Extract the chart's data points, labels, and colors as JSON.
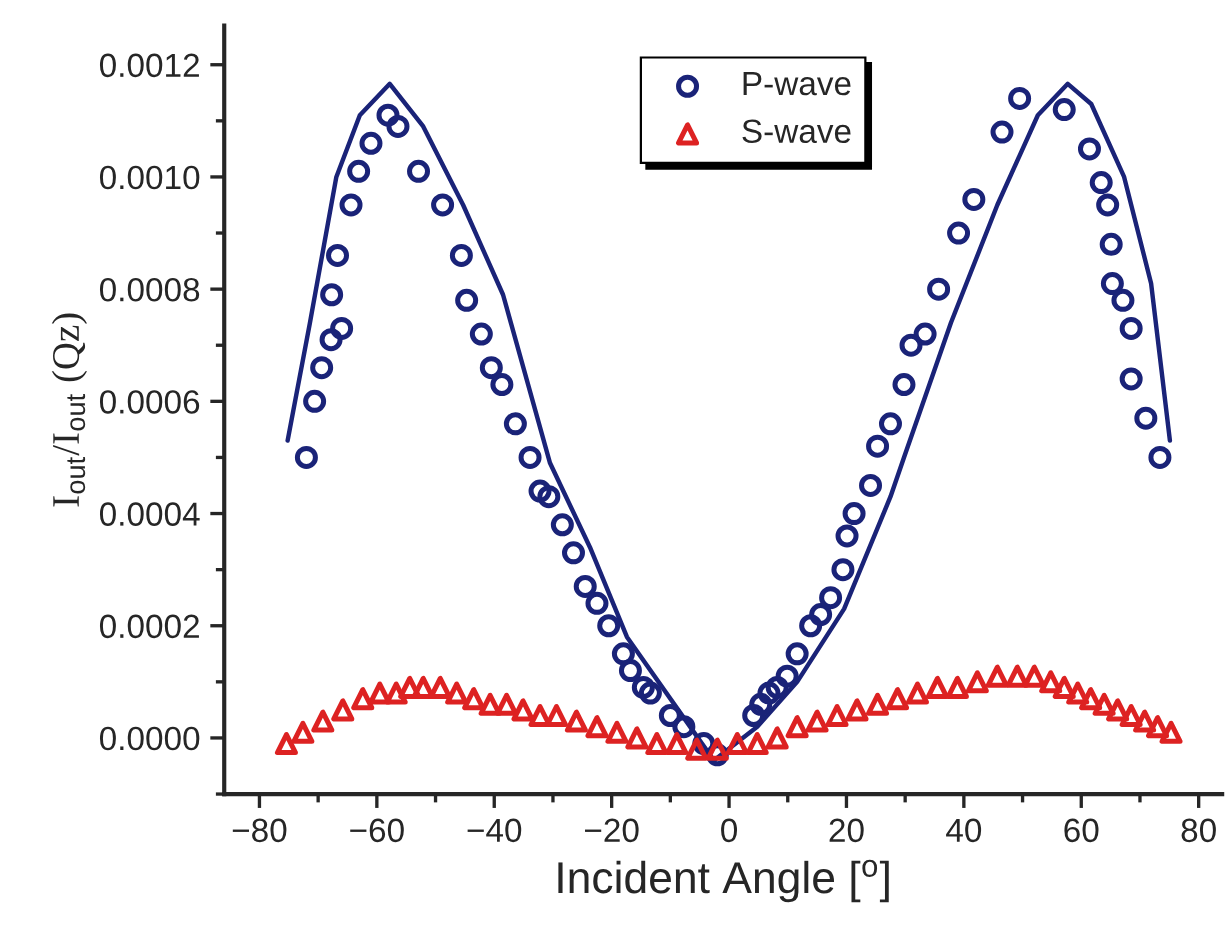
{
  "chart_data": {
    "type": "scatter",
    "xlabel": "Incident Angle [$^{o}$]",
    "ylabel": "I$_{out}$/I$_{out}$ (Qz)",
    "xlim": [
      -86,
      84
    ],
    "ylim": [
      -0.0001,
      0.00127
    ],
    "xticks": [
      -80,
      {
        "value": -70,
        "label": null
      },
      -60,
      {
        "value": -50,
        "label": null
      },
      -40,
      {
        "value": -30,
        "label": null
      },
      -20,
      {
        "value": -10,
        "label": null
      },
      0,
      {
        "value": 10,
        "label": null
      },
      20,
      {
        "value": 30,
        "label": null
      },
      40,
      {
        "value": 50,
        "label": null
      },
      60,
      {
        "value": 70,
        "label": null
      },
      80
    ],
    "yticks": [
      {
        "value": -0.0001,
        "label": null
      },
      {
        "value": 0,
        "label": "0.0000"
      },
      {
        "value": 0.0001,
        "label": null
      },
      {
        "value": 0.0002,
        "label": "0.0002"
      },
      {
        "value": 0.0003,
        "label": null
      },
      {
        "value": 0.0004,
        "label": "0.0004"
      },
      {
        "value": 0.0005,
        "label": null
      },
      {
        "value": 0.0006,
        "label": "0.0006"
      },
      {
        "value": 0.0007,
        "label": null
      },
      {
        "value": 0.0008,
        "label": "0.0008"
      },
      {
        "value": 0.0009,
        "label": null
      },
      {
        "value": 0.001,
        "label": "0.0010"
      },
      {
        "value": 0.0011,
        "label": null
      },
      {
        "value": 0.0012,
        "label": "0.0012"
      }
    ],
    "grid": false,
    "legend": "top",
    "series": [
      {
        "type": "line",
        "color": "#1a2378",
        "marker": "none",
        "line_style": "solid",
        "x": [
          -75.2,
          -71.4,
          -66.9,
          -62.9,
          -57.8,
          -52.1,
          -45.3,
          -38.5,
          -30.5,
          -23.7,
          -17.4,
          -2.6,
          4.8,
          11.6,
          19.6,
          27.5,
          29.8,
          37.8,
          45.7,
          52.6,
          57.7,
          61.7,
          67.3,
          71.9,
          75.1
        ],
        "values": [
          0.00053,
          0.00074,
          0.001,
          0.00111,
          0.001166,
          0.00109,
          0.00095,
          0.00079,
          0.00049,
          0.00034,
          0.00018,
          -4e-05,
          2e-05,
          0.0001,
          0.00023,
          0.00043,
          0.0005,
          0.00074,
          0.00095,
          0.00111,
          0.001166,
          0.00113,
          0.001,
          0.00081,
          0.00053
        ]
      },
      {
        "name": "P-wave",
        "color": "#1a2378",
        "marker": "circle",
        "x": [
          -72.0,
          -70.6,
          -69.4,
          -67.8,
          -66.0,
          -67.7,
          -66.7,
          -64.4,
          -63.1,
          -61.0,
          -58.1,
          -56.4,
          -52.9,
          -48.8,
          -45.6,
          -44.7,
          -42.2,
          -40.5,
          -38.7,
          -36.4,
          -33.9,
          -32.2,
          -30.7,
          -28.4,
          -26.5,
          -24.5,
          -22.5,
          -20.5,
          -18.0,
          -16.8,
          -14.6,
          -13.4,
          -10.0,
          -7.7,
          -4.3,
          -2.0,
          4.2,
          5.4,
          6.8,
          8.2,
          9.9,
          11.6,
          13.9,
          15.6,
          17.3,
          19.4,
          20.1,
          21.3,
          24.1,
          25.3,
          27.5,
          29.8,
          31.0,
          33.4,
          35.7,
          39.1,
          41.7,
          46.5,
          49.5,
          57.1,
          61.4,
          63.4,
          64.5,
          65.1,
          65.3,
          67.1,
          68.5,
          68.5,
          71.0,
          73.4
        ],
        "values": [
          0.0005,
          0.0006,
          0.00066,
          0.00071,
          0.00073,
          0.00079,
          0.00086,
          0.00095,
          0.00101,
          0.00106,
          0.00111,
          0.00109,
          0.00101,
          0.00095,
          0.00086,
          0.00078,
          0.00072,
          0.00066,
          0.00063,
          0.00056,
          0.0005,
          0.00044,
          0.00043,
          0.00038,
          0.00033,
          0.00027,
          0.00024,
          0.0002,
          0.00015,
          0.00012,
          9e-05,
          8e-05,
          4e-05,
          2e-05,
          -1e-05,
          -3e-05,
          4e-05,
          6e-05,
          8e-05,
          9e-05,
          0.00011,
          0.00015,
          0.0002,
          0.00022,
          0.00025,
          0.0003,
          0.00036,
          0.0004,
          0.00045,
          0.00052,
          0.00056,
          0.00063,
          0.0007,
          0.00072,
          0.0008,
          0.0009,
          0.00096,
          0.00108,
          0.00114,
          0.00112,
          0.00105,
          0.00099,
          0.00095,
          0.00088,
          0.00081,
          0.00078,
          0.00073,
          0.00064,
          0.00057,
          0.0005
        ]
      },
      {
        "name": "S-wave",
        "color": "#dd2222",
        "marker": "triangle",
        "x": [
          -75.4,
          -72.6,
          -69.2,
          -65.8,
          -62.4,
          -59.5,
          -56.7,
          -54.4,
          -52.1,
          -49.2,
          -46.4,
          -43.5,
          -40.7,
          -37.9,
          -35.1,
          -32.2,
          -29.4,
          -26.0,
          -22.5,
          -19.1,
          -15.7,
          -12.3,
          -8.9,
          -5.5,
          -2.0,
          1.4,
          4.8,
          8.2,
          11.6,
          15.0,
          18.4,
          21.8,
          25.3,
          28.7,
          32.1,
          35.5,
          38.9,
          42.3,
          45.7,
          49.1,
          52.0,
          54.8,
          57.1,
          59.4,
          61.6,
          63.9,
          66.2,
          68.5,
          70.8,
          73.0,
          75.3
        ],
        "values": [
          -1e-05,
          1e-05,
          3e-05,
          5e-05,
          7e-05,
          8e-05,
          8e-05,
          9e-05,
          9e-05,
          9e-05,
          8e-05,
          7e-05,
          6e-05,
          6e-05,
          5e-05,
          4e-05,
          4e-05,
          3e-05,
          2e-05,
          1e-05,
          0.0,
          -1e-05,
          -1e-05,
          -2e-05,
          -2e-05,
          -1e-05,
          -1e-05,
          0.0,
          2e-05,
          3e-05,
          4e-05,
          5e-05,
          6e-05,
          7e-05,
          8e-05,
          9e-05,
          9e-05,
          0.0001,
          0.00011,
          0.00011,
          0.00011,
          0.0001,
          9e-05,
          8e-05,
          7e-05,
          6e-05,
          5e-05,
          4e-05,
          3e-05,
          2e-05,
          1e-05
        ]
      }
    ]
  }
}
